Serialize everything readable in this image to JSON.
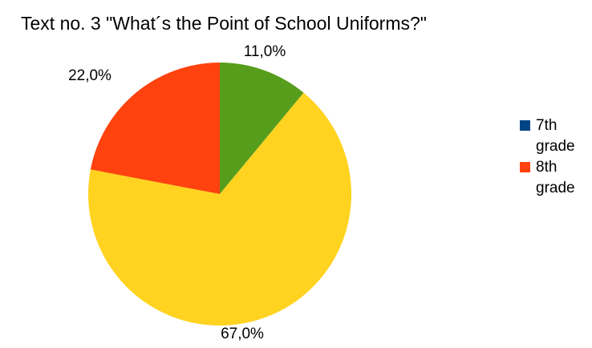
{
  "chart_data": {
    "type": "pie",
    "title": "Text no. 3 \"What´s the Point of School Uniforms?\"",
    "slices": [
      {
        "label": "",
        "value": 11.0,
        "display": "11,0%",
        "color": "#579d1c"
      },
      {
        "label": "",
        "value": 67.0,
        "display": "67,0%",
        "color": "#ffd320"
      },
      {
        "label": "",
        "value": 22.0,
        "display": "22,0%",
        "color": "#ff420e"
      }
    ],
    "legend": {
      "placement": "right",
      "items": [
        {
          "label": "7th grade",
          "color": "#004586"
        },
        {
          "label": "8th grade",
          "color": "#ff420e"
        }
      ]
    }
  }
}
